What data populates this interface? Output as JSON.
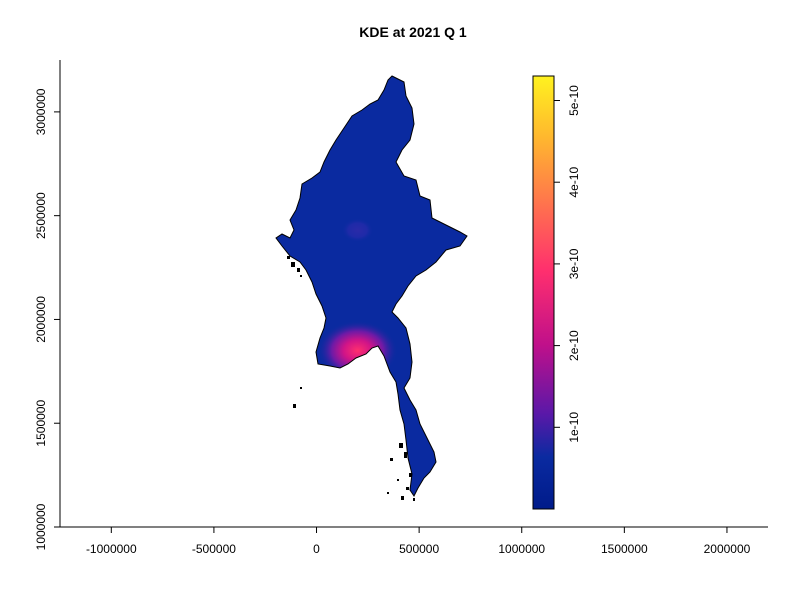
{
  "chart_data": {
    "type": "heatmap",
    "title": "KDE at 2021 Q 1",
    "xlim": [
      -1250000,
      2200000
    ],
    "ylim": [
      1000000,
      3250000
    ],
    "x_ticks": [
      -1000000,
      -500000,
      0,
      500000,
      1000000,
      1500000,
      2000000
    ],
    "x_tick_labels": [
      "-1000000",
      "-500000",
      "0",
      "500000",
      "1000000",
      "1500000",
      "2000000"
    ],
    "y_ticks": [
      1000000,
      1500000,
      2000000,
      2500000,
      3000000
    ],
    "y_tick_labels": [
      "1000000",
      "1500000",
      "2000000",
      "2500000",
      "3000000"
    ],
    "colorbar": {
      "min": 0,
      "max": 5.3e-10,
      "ticks": [
        1e-10,
        2e-10,
        3e-10,
        4e-10,
        5e-10
      ],
      "tick_labels": [
        "1e-10",
        "2e-10",
        "3e-10",
        "4e-10",
        "5e-10"
      ],
      "colors": [
        "#001b8a",
        "#0a2aa0",
        "#5a18a8",
        "#c0108a",
        "#ff2f6e",
        "#ff7a4a",
        "#ffb82e",
        "#fff21f"
      ]
    },
    "hotspots": [
      {
        "x": 200000,
        "y": 1850000,
        "density": 2.5e-10
      },
      {
        "x": 200000,
        "y": 2430000,
        "density": 6e-11
      }
    ],
    "background_density": 1e-11
  }
}
